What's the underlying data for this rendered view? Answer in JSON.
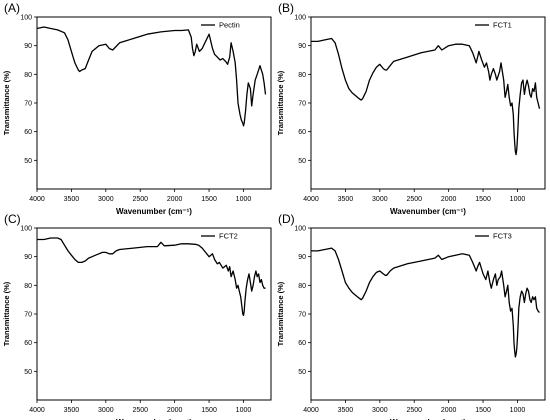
{
  "chart_data": [
    {
      "type": "line",
      "panel_label": "(A)",
      "xlabel": "Wavenumber (cm⁻¹)",
      "ylabel": "Transmittance (%)",
      "xlim": [
        4000,
        600
      ],
      "x_reversed": true,
      "ylim": [
        40,
        100
      ],
      "x_ticks": [
        4000,
        3500,
        3000,
        2500,
        2000,
        1500,
        1000
      ],
      "y_ticks": [
        50,
        60,
        70,
        80,
        90,
        100
      ],
      "legend": "top-right",
      "series": [
        {
          "name": "Pectin",
          "x": [
            4000,
            3900,
            3800,
            3700,
            3600,
            3550,
            3500,
            3450,
            3400,
            3380,
            3350,
            3300,
            3250,
            3200,
            3100,
            3000,
            2950,
            2900,
            2800,
            2600,
            2400,
            2200,
            2000,
            1900,
            1800,
            1760,
            1740,
            1720,
            1700,
            1680,
            1640,
            1600,
            1560,
            1500,
            1450,
            1420,
            1380,
            1340,
            1300,
            1260,
            1230,
            1200,
            1180,
            1150,
            1120,
            1100,
            1080,
            1050,
            1030,
            1010,
            1000,
            990,
            970,
            950,
            930,
            900,
            880,
            860,
            830,
            800,
            760,
            720,
            700,
            680
          ],
          "y": [
            96,
            96.5,
            96,
            95.5,
            94.5,
            92,
            88,
            84,
            81.5,
            81,
            81.5,
            82,
            85,
            88,
            90,
            90.5,
            89,
            88.5,
            91,
            92.5,
            94,
            94.8,
            95.3,
            95.3,
            95.5,
            93,
            89,
            86.5,
            88,
            90.5,
            88,
            89,
            91,
            94,
            89,
            87,
            86,
            85,
            85.5,
            84.5,
            83.5,
            86,
            91,
            88,
            84,
            78,
            70,
            66,
            64,
            63,
            62,
            63,
            67,
            73,
            77,
            75,
            69,
            73,
            78,
            80,
            83,
            80,
            77,
            73
          ]
        }
      ]
    },
    {
      "type": "line",
      "panel_label": "(B)",
      "xlabel": "Wavenumber (cm⁻¹)",
      "ylabel": "Transmittance (%)",
      "xlim": [
        4000,
        600
      ],
      "x_reversed": true,
      "ylim": [
        40,
        100
      ],
      "x_ticks": [
        4000,
        3500,
        3000,
        2500,
        2000,
        1500,
        1000
      ],
      "y_ticks": [
        50,
        60,
        70,
        80,
        90,
        100
      ],
      "legend": "top-right",
      "series": [
        {
          "name": "FCT1",
          "x": [
            4000,
            3900,
            3800,
            3700,
            3650,
            3600,
            3550,
            3500,
            3450,
            3400,
            3350,
            3300,
            3270,
            3250,
            3200,
            3150,
            3100,
            3050,
            3000,
            2950,
            2920,
            2900,
            2850,
            2800,
            2600,
            2400,
            2200,
            2150,
            2100,
            2000,
            1900,
            1800,
            1700,
            1650,
            1600,
            1580,
            1560,
            1520,
            1480,
            1450,
            1420,
            1400,
            1380,
            1350,
            1320,
            1300,
            1260,
            1240,
            1200,
            1180,
            1160,
            1140,
            1120,
            1100,
            1080,
            1060,
            1050,
            1040,
            1030,
            1020,
            1010,
            1000,
            990,
            980,
            960,
            940,
            920,
            900,
            880,
            860,
            840,
            820,
            800,
            780,
            760,
            740,
            720,
            700,
            680
          ],
          "y": [
            91.5,
            91.5,
            92,
            92.5,
            91,
            87,
            82,
            78,
            75,
            73.5,
            72.5,
            71.5,
            71,
            71.5,
            74,
            78,
            80.5,
            82.5,
            83.5,
            82,
            81.5,
            81.5,
            83,
            84.5,
            86,
            87.5,
            88.5,
            90,
            88.5,
            90,
            90.5,
            90.5,
            90,
            87.5,
            84,
            86,
            88,
            85,
            82.5,
            84,
            81,
            78,
            80,
            82,
            80,
            78,
            81,
            84,
            78,
            72,
            74,
            76.5,
            72,
            69,
            70,
            66,
            60,
            56,
            53,
            52,
            54,
            58,
            63,
            68,
            73,
            77,
            78,
            73,
            76,
            78,
            76,
            73,
            72,
            75,
            74,
            77,
            72,
            70,
            68
          ]
        }
      ]
    },
    {
      "type": "line",
      "panel_label": "(C)",
      "xlabel": "Wavenumber (cm⁻¹)",
      "ylabel": "Transmittance (%)",
      "xlim": [
        4000,
        600
      ],
      "x_reversed": true,
      "ylim": [
        40,
        100
      ],
      "x_ticks": [
        4000,
        3500,
        3000,
        2500,
        2000,
        1500,
        1000
      ],
      "y_ticks": [
        50,
        60,
        70,
        80,
        90,
        100
      ],
      "legend": "top-right",
      "series": [
        {
          "name": "FCT2",
          "x": [
            4000,
            3900,
            3800,
            3700,
            3650,
            3600,
            3550,
            3500,
            3450,
            3400,
            3350,
            3300,
            3250,
            3200,
            3150,
            3100,
            3050,
            3000,
            2950,
            2900,
            2850,
            2800,
            2600,
            2400,
            2250,
            2200,
            2150,
            2000,
            1900,
            1800,
            1700,
            1650,
            1600,
            1550,
            1500,
            1450,
            1420,
            1380,
            1350,
            1300,
            1250,
            1220,
            1200,
            1180,
            1150,
            1120,
            1100,
            1080,
            1060,
            1040,
            1020,
            1010,
            1000,
            990,
            980,
            960,
            940,
            920,
            900,
            880,
            860,
            840,
            820,
            800,
            780,
            760,
            740,
            720,
            700,
            680
          ],
          "y": [
            96,
            96,
            96.5,
            96.5,
            96,
            94,
            92,
            90.5,
            89,
            88,
            88,
            88.5,
            89.5,
            90,
            90.5,
            91,
            91.5,
            91.5,
            91,
            91,
            92,
            92.5,
            93,
            93.5,
            93.5,
            95,
            93.8,
            94,
            94.5,
            94.5,
            94.3,
            94,
            93,
            91.5,
            90,
            91,
            89,
            87.5,
            88,
            86,
            87,
            85,
            86.5,
            83,
            85,
            82,
            79,
            80,
            78,
            76,
            72,
            70,
            69.5,
            71,
            74,
            79,
            82,
            84,
            81,
            78,
            80,
            83,
            85,
            83,
            84,
            81,
            82,
            80,
            79,
            79
          ]
        }
      ]
    },
    {
      "type": "line",
      "panel_label": "(D)",
      "xlabel": "Wavenumber (cm⁻¹)",
      "ylabel": "Transmittance (%)",
      "xlim": [
        4000,
        600
      ],
      "x_reversed": true,
      "ylim": [
        40,
        100
      ],
      "x_ticks": [
        4000,
        3500,
        3000,
        2500,
        2000,
        1500,
        1000
      ],
      "y_ticks": [
        50,
        60,
        70,
        80,
        90,
        100
      ],
      "legend": "top-right",
      "series": [
        {
          "name": "FCT3",
          "x": [
            4000,
            3900,
            3800,
            3700,
            3650,
            3600,
            3550,
            3500,
            3450,
            3400,
            3350,
            3300,
            3270,
            3250,
            3200,
            3150,
            3100,
            3050,
            3000,
            2950,
            2920,
            2900,
            2850,
            2800,
            2600,
            2400,
            2200,
            2150,
            2100,
            2000,
            1900,
            1800,
            1700,
            1650,
            1600,
            1580,
            1550,
            1500,
            1460,
            1430,
            1400,
            1380,
            1350,
            1320,
            1300,
            1280,
            1250,
            1230,
            1200,
            1180,
            1160,
            1140,
            1120,
            1100,
            1080,
            1060,
            1050,
            1040,
            1030,
            1020,
            1010,
            1000,
            990,
            980,
            960,
            940,
            920,
            900,
            880,
            860,
            840,
            820,
            800,
            780,
            760,
            740,
            720,
            700,
            680
          ],
          "y": [
            92,
            92,
            92.5,
            93,
            92,
            89,
            85,
            81,
            79,
            77.5,
            76.5,
            75.5,
            75,
            75.5,
            78,
            81,
            83,
            84.5,
            85,
            84,
            83.5,
            83.5,
            85,
            86,
            87.5,
            88.5,
            89.5,
            90.5,
            89,
            90,
            90.5,
            91,
            90.5,
            88,
            85,
            86.5,
            88,
            84,
            82,
            85,
            81,
            79,
            82,
            84,
            80,
            82,
            83,
            85,
            80,
            76,
            78,
            80,
            74,
            71,
            72,
            66,
            60,
            57,
            55,
            56,
            58,
            62,
            67,
            72,
            76,
            78,
            77,
            74,
            77,
            79,
            78,
            75,
            74,
            76,
            75,
            76,
            72,
            71,
            70.5
          ]
        }
      ]
    }
  ]
}
